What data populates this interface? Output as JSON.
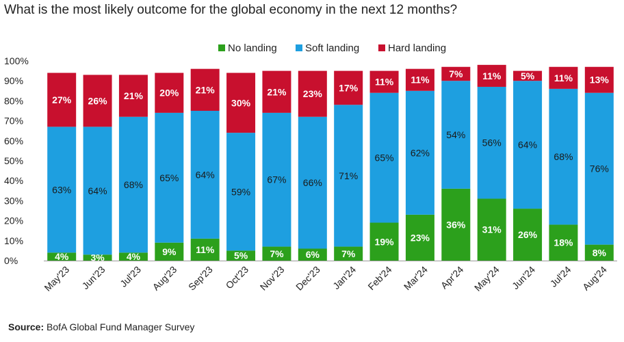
{
  "title": "What is the most likely outcome for the global economy in the next 12 months?",
  "source": {
    "label": "Source:",
    "text": "BofA Global Fund Manager Survey"
  },
  "colors": {
    "no": "#2ca01c",
    "soft": "#1e9fe0",
    "hard": "#c8102e"
  },
  "chart_data": {
    "type": "bar",
    "stacked": true,
    "categories": [
      "May'23",
      "Jun'23",
      "Jul'23",
      "Aug'23",
      "Sep'23",
      "Oct'23",
      "Nov'23",
      "Dec'23",
      "Jan'24",
      "Feb'24",
      "Mar'24",
      "Apr'24",
      "May'24",
      "Jun'24",
      "Jul'24",
      "Aug'24"
    ],
    "series": [
      {
        "name": "No landing",
        "key": "no",
        "values": [
          4,
          3,
          4,
          9,
          11,
          5,
          7,
          6,
          7,
          19,
          23,
          36,
          31,
          26,
          18,
          8
        ]
      },
      {
        "name": "Soft landing",
        "key": "soft",
        "values": [
          63,
          64,
          68,
          65,
          64,
          59,
          67,
          66,
          71,
          65,
          62,
          54,
          56,
          64,
          68,
          76
        ]
      },
      {
        "name": "Hard landing",
        "key": "hard",
        "values": [
          27,
          26,
          21,
          20,
          21,
          30,
          21,
          23,
          17,
          11,
          11,
          7,
          11,
          5,
          11,
          13
        ]
      }
    ],
    "value_labels": {
      "no": [
        "4%",
        "3%",
        "4%",
        "9%",
        "11%",
        "5%",
        "7%",
        "6%",
        "7%",
        "19%",
        "23%",
        "36%",
        "31%",
        "26%",
        "18%",
        "8%"
      ],
      "soft": [
        "63%",
        "64%",
        "68%",
        "65%",
        "64%",
        "59%",
        "67%",
        "66%",
        "71%",
        "65%",
        "62%",
        "54%",
        "56%",
        "64%",
        "68%",
        "76%"
      ],
      "hard": [
        "27%",
        "26%",
        "21%",
        "20%",
        "21%",
        "30%",
        "21%",
        "23%",
        "17%",
        "11%",
        "11%",
        "7%",
        "11%",
        "5%",
        "11%",
        "13%"
      ]
    },
    "yticks": [
      "0%",
      "10%",
      "20%",
      "30%",
      "40%",
      "50%",
      "60%",
      "70%",
      "80%",
      "90%",
      "100%"
    ],
    "ylim": [
      0,
      100
    ],
    "legend_position": "top",
    "grid": false
  }
}
